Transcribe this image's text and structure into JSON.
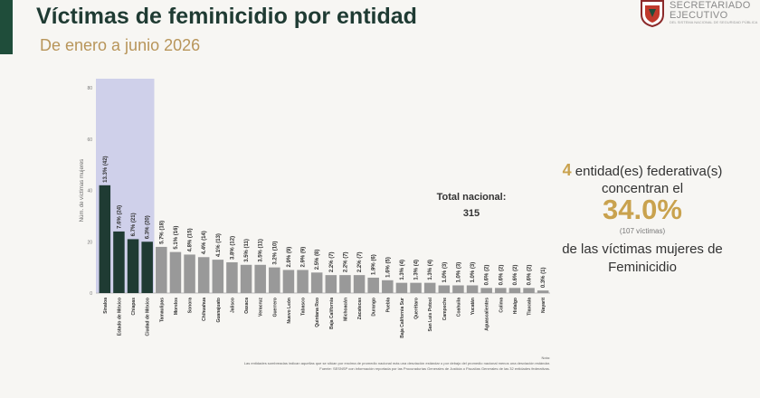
{
  "header": {
    "title": "Víctimas de feminicidio por entidad",
    "subtitle": "De enero a junio 2026"
  },
  "logo": {
    "line1": "SECRETARIADO",
    "line2": "EJECUTIVO",
    "line3": "DEL SISTEMA NACIONAL DE SEGURIDAD PÚBLICA"
  },
  "colors": {
    "highlight": "#1f3b33",
    "bar": "#999999",
    "band": "#cfd0ea",
    "accent": "#c9a24e",
    "brand": "#1f4d3a"
  },
  "summary": {
    "count": "4",
    "line1_rest": "entidad(es) federativa(s)",
    "line2": "concentran el",
    "percent": "34.0%",
    "victims_note": "(107 víctimas)",
    "line4": "de las víctimas mujeres de",
    "line5": "Feminicidio"
  },
  "total": {
    "label": "Total nacional:",
    "value": "315"
  },
  "footer": {
    "line1": "Nota:",
    "line2": "Las entidades sombreadas indican aquellas que se sitúan por encima de promedio nacional más una desviación estándar o por debajo del promedio nacional menos una desviación estándar.",
    "line3": "Fuente: SESNSP con información reportada por las Procuradurías Generales de Justicia o Fiscalías Generales de las 32 entidades federativas."
  },
  "chart_data": {
    "type": "bar",
    "ylabel": "Núm. de víctimas mujeres",
    "ylim": [
      0,
      80
    ],
    "yticks": [
      0,
      20,
      40,
      60,
      80
    ],
    "highlighted": [
      "Sinaloa",
      "Estado de México",
      "Chiapas",
      "Ciudad de México"
    ],
    "categories": [
      "Sinaloa",
      "Estado de México",
      "Chiapas",
      "Ciudad de México",
      "Tamaulipas",
      "Morelos",
      "Sonora",
      "Chihuahua",
      "Guanajuato",
      "Jalisco",
      "Oaxaca",
      "Veracruz",
      "Guerrero",
      "Nuevo León",
      "Tabasco",
      "Quintana Roo",
      "Baja California",
      "Michoacán",
      "Zacatecas",
      "Durango",
      "Puebla",
      "Baja California Sur",
      "Querétaro",
      "San Luis Potosí",
      "Campeche",
      "Coahuila",
      "Yucatán",
      "Aguascalientes",
      "Colima",
      "Hidalgo",
      "Tlaxcala",
      "Nayarit"
    ],
    "values": [
      42,
      24,
      21,
      20,
      18,
      16,
      15,
      14,
      13,
      12,
      11,
      11,
      10,
      9,
      9,
      8,
      7,
      7,
      7,
      6,
      5,
      4,
      4,
      4,
      3,
      3,
      3,
      2,
      2,
      2,
      2,
      1
    ],
    "labels": [
      "13.3% (42)",
      "7.6% (24)",
      "6.7% (21)",
      "6.3% (20)",
      "5.7% (18)",
      "5.1% (16)",
      "4.8% (15)",
      "4.4% (14)",
      "4.1% (13)",
      "3.8% (12)",
      "3.5% (11)",
      "3.5% (11)",
      "3.2% (10)",
      "2.9% (9)",
      "2.9% (9)",
      "2.5% (8)",
      "2.2% (7)",
      "2.2% (7)",
      "2.2% (7)",
      "1.9% (6)",
      "1.6% (5)",
      "1.3% (4)",
      "1.3% (4)",
      "1.3% (4)",
      "1.0% (3)",
      "1.0% (3)",
      "1.0% (3)",
      "0.6% (2)",
      "0.6% (2)",
      "0.6% (2)",
      "0.6% (2)",
      "0.3% (1)"
    ]
  }
}
